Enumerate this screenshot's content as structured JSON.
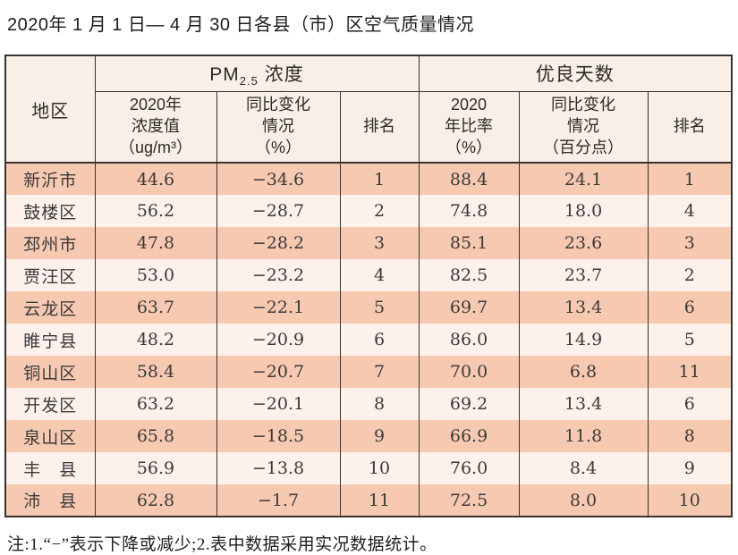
{
  "title": "2020年 1 月 1 日— 4 月 30 日各县（市）区空气质量情况",
  "table": {
    "corner_header": "地区",
    "group_headers": {
      "pm25": {
        "pre": "PM",
        "sub": "2.5",
        "post": " 浓度"
      },
      "good_days": "优良天数"
    },
    "sub_headers": {
      "pm_value": "2020年\n浓度值\n（ug/m³）",
      "pm_change": "同比变化\n情况\n（%）",
      "pm_rank": "排名",
      "gd_ratio": "2020\n年比率\n（%）",
      "gd_change": "同比变化\n情况\n（百分点）",
      "gd_rank": "排名"
    },
    "rows": [
      {
        "region": "新沂市",
        "pm_value": "44.6",
        "pm_change": "−34.6",
        "pm_rank": "1",
        "gd_ratio": "88.4",
        "gd_change": "24.1",
        "gd_rank": "1"
      },
      {
        "region": "鼓楼区",
        "pm_value": "56.2",
        "pm_change": "−28.7",
        "pm_rank": "2",
        "gd_ratio": "74.8",
        "gd_change": "18.0",
        "gd_rank": "4"
      },
      {
        "region": "邳州市",
        "pm_value": "47.8",
        "pm_change": "−28.2",
        "pm_rank": "3",
        "gd_ratio": "85.1",
        "gd_change": "23.6",
        "gd_rank": "3"
      },
      {
        "region": "贾汪区",
        "pm_value": "53.0",
        "pm_change": "−23.2",
        "pm_rank": "4",
        "gd_ratio": "82.5",
        "gd_change": "23.7",
        "gd_rank": "2"
      },
      {
        "region": "云龙区",
        "pm_value": "63.7",
        "pm_change": "−22.1",
        "pm_rank": "5",
        "gd_ratio": "69.7",
        "gd_change": "13.4",
        "gd_rank": "6"
      },
      {
        "region": "睢宁县",
        "pm_value": "48.2",
        "pm_change": "−20.9",
        "pm_rank": "6",
        "gd_ratio": "86.0",
        "gd_change": "14.9",
        "gd_rank": "5"
      },
      {
        "region": "铜山区",
        "pm_value": "58.4",
        "pm_change": "−20.7",
        "pm_rank": "7",
        "gd_ratio": "70.0",
        "gd_change": "6.8",
        "gd_rank": "11"
      },
      {
        "region": "开发区",
        "pm_value": "63.2",
        "pm_change": "−20.1",
        "pm_rank": "8",
        "gd_ratio": "69.2",
        "gd_change": "13.4",
        "gd_rank": "6"
      },
      {
        "region": "泉山区",
        "pm_value": "65.8",
        "pm_change": "−18.5",
        "pm_rank": "9",
        "gd_ratio": "66.9",
        "gd_change": "11.8",
        "gd_rank": "8"
      },
      {
        "region": "丰　县",
        "pm_value": "56.9",
        "pm_change": "−13.8",
        "pm_rank": "10",
        "gd_ratio": "76.0",
        "gd_change": "8.4",
        "gd_rank": "9"
      },
      {
        "region": "沛　县",
        "pm_value": "62.8",
        "pm_change": "−1.7",
        "pm_rank": "11",
        "gd_ratio": "72.5",
        "gd_change": "8.0",
        "gd_rank": "10"
      }
    ]
  },
  "footnote": "注:1.“−”表示下降或减少;2.表中数据采用实况数据统计。",
  "colors": {
    "border": "#38332f",
    "header_bg": "#f8efe6",
    "row_odd_bg": "#f8c9b1",
    "row_even_bg": "#fcf1eb",
    "text": "#3a3a3a"
  }
}
